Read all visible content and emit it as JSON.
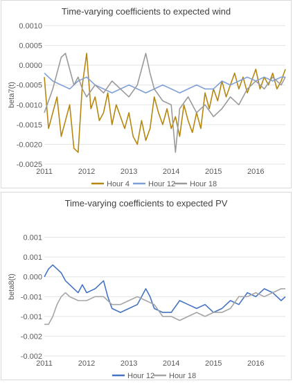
{
  "chart_data": [
    {
      "type": "line",
      "title": "Time-varying coefficients to expected wind",
      "xlabel": "",
      "ylabel": "beta7(t)",
      "ylim": [
        -0.0025,
        0.001
      ],
      "yticks": [
        "0.0010",
        "0.0005",
        "0.0000",
        "-0.0005",
        "-0.0010",
        "-0.0015",
        "-0.0020",
        "-0.0025"
      ],
      "ytick_values": [
        0.001,
        0.0005,
        0.0,
        -0.0005,
        -0.001,
        -0.0015,
        -0.002,
        -0.0025
      ],
      "xlim": [
        2011.0,
        2016.7
      ],
      "xticks": [
        "2011",
        "2012",
        "2013",
        "2014",
        "2015",
        "2016"
      ],
      "grid": true,
      "legend": "bottom",
      "series": [
        {
          "name": "Hour 4",
          "color": "#b5870f",
          "x": [
            2011.0,
            2011.1,
            2011.2,
            2011.3,
            2011.4,
            2011.5,
            2011.6,
            2011.7,
            2011.8,
            2011.9,
            2012.0,
            2012.1,
            2012.2,
            2012.3,
            2012.4,
            2012.5,
            2012.6,
            2012.7,
            2012.8,
            2012.9,
            2013.0,
            2013.1,
            2013.2,
            2013.3,
            2013.4,
            2013.5,
            2013.6,
            2013.7,
            2013.8,
            2013.9,
            2014.0,
            2014.1,
            2014.2,
            2014.3,
            2014.4,
            2014.5,
            2014.6,
            2014.7,
            2014.8,
            2014.9,
            2015.0,
            2015.1,
            2015.2,
            2015.3,
            2015.4,
            2015.5,
            2015.6,
            2015.7,
            2015.8,
            2015.9,
            2016.0,
            2016.1,
            2016.2,
            2016.3,
            2016.4,
            2016.5,
            2016.6,
            2016.7
          ],
          "values": [
            -0.0003,
            -0.0016,
            -0.0012,
            -0.0008,
            -0.0018,
            -0.0014,
            -0.001,
            -0.0021,
            -0.0022,
            -0.0005,
            0.0003,
            -0.0011,
            -0.0008,
            -0.0014,
            -0.0012,
            -0.0007,
            -0.0015,
            -0.001,
            -0.0013,
            -0.0016,
            -0.0012,
            -0.0018,
            -0.002,
            -0.0014,
            -0.0019,
            -0.0016,
            -0.0008,
            -0.0012,
            -0.0015,
            -0.0011,
            -0.0016,
            -0.0013,
            -0.0018,
            -0.001,
            -0.0014,
            -0.0017,
            -0.0012,
            -0.0016,
            -0.0007,
            -0.0011,
            -0.0006,
            -0.0009,
            -0.0004,
            -0.0008,
            -0.0005,
            -0.0002,
            -0.0006,
            -0.0003,
            -0.0007,
            -0.0004,
            -0.0001,
            -0.0006,
            -0.0003,
            -0.0005,
            -0.0002,
            -0.0006,
            -0.0004,
            -0.0001
          ]
        },
        {
          "name": "Hour 12",
          "color": "#7f9fd8",
          "x": [
            2011.0,
            2011.2,
            2011.4,
            2011.6,
            2011.8,
            2012.0,
            2012.2,
            2012.4,
            2012.6,
            2012.8,
            2013.0,
            2013.2,
            2013.4,
            2013.6,
            2013.8,
            2014.0,
            2014.2,
            2014.4,
            2014.6,
            2014.8,
            2015.0,
            2015.2,
            2015.4,
            2015.6,
            2015.8,
            2016.0,
            2016.2,
            2016.4,
            2016.6,
            2016.7
          ],
          "values": [
            -0.0002,
            -0.0004,
            -0.0005,
            -0.0006,
            -0.0004,
            -0.0003,
            -0.0005,
            -0.0006,
            -0.0007,
            -0.0006,
            -0.0005,
            -0.0006,
            -0.0007,
            -0.0006,
            -0.0005,
            -0.0006,
            -0.0007,
            -0.0006,
            -0.0005,
            -0.0006,
            -0.0006,
            -0.0004,
            -0.0005,
            -0.0004,
            -0.0003,
            -0.0004,
            -0.0003,
            -0.0004,
            -0.0003,
            -0.0003
          ]
        },
        {
          "name": "Hour 18",
          "color": "#9a9a9a",
          "x": [
            2011.0,
            2011.1,
            2011.2,
            2011.3,
            2011.4,
            2011.5,
            2011.6,
            2011.7,
            2011.8,
            2011.9,
            2012.0,
            2012.2,
            2012.4,
            2012.6,
            2012.8,
            2013.0,
            2013.2,
            2013.4,
            2013.5,
            2013.6,
            2013.8,
            2014.0,
            2014.1,
            2014.2,
            2014.4,
            2014.6,
            2014.8,
            2015.0,
            2015.2,
            2015.4,
            2015.6,
            2015.8,
            2016.0,
            2016.2,
            2016.4,
            2016.6,
            2016.7
          ],
          "values": [
            -0.0012,
            -0.0009,
            -0.0006,
            -0.0002,
            0.0002,
            0.0003,
            -0.0001,
            -0.0005,
            -0.0003,
            -0.0006,
            -0.0008,
            -0.0005,
            -0.0007,
            -0.0004,
            -0.0006,
            -0.0008,
            -0.0005,
            0.0003,
            -0.0002,
            -0.0006,
            -0.0009,
            -0.001,
            -0.0022,
            -0.0011,
            -0.0008,
            -0.0012,
            -0.001,
            -0.0013,
            -0.0011,
            -0.0008,
            -0.001,
            -0.0006,
            -0.0004,
            -0.0006,
            -0.0003,
            -0.0005,
            -0.0003
          ]
        }
      ]
    },
    {
      "type": "line",
      "title": "Time-varying coefficients to expected PV",
      "xlabel": "",
      "ylabel": "beta8(t)",
      "ylim": [
        -0.002,
        0.0015
      ],
      "yticks": [
        "0.001",
        "0.001",
        "0.000",
        "-0.001",
        "-0.001",
        "-0.002",
        "-0.002"
      ],
      "ytick_values": [
        0.001,
        0.0005,
        0.0,
        -0.0005,
        -0.001,
        -0.0015,
        -0.002
      ],
      "xlim": [
        2011.0,
        2016.7
      ],
      "xticks": [
        "2011",
        "2012",
        "2013",
        "2014",
        "2015",
        "2016"
      ],
      "grid": true,
      "legend": "bottom",
      "series": [
        {
          "name": "Hour 12",
          "color": "#4472c4",
          "x": [
            2011.0,
            2011.1,
            2011.2,
            2011.3,
            2011.4,
            2011.5,
            2011.6,
            2011.7,
            2011.8,
            2011.9,
            2012.0,
            2012.2,
            2012.4,
            2012.5,
            2012.6,
            2012.8,
            2013.0,
            2013.2,
            2013.4,
            2013.5,
            2013.6,
            2013.8,
            2014.0,
            2014.2,
            2014.4,
            2014.6,
            2014.8,
            2015.0,
            2015.2,
            2015.4,
            2015.6,
            2015.8,
            2016.0,
            2016.2,
            2016.4,
            2016.6,
            2016.7
          ],
          "values": [
            0.0,
            0.0002,
            0.0003,
            0.0002,
            0.0001,
            -0.0001,
            -0.0002,
            -0.0003,
            -0.0004,
            -0.0002,
            -0.0004,
            -0.0003,
            -0.0001,
            -0.0005,
            -0.0008,
            -0.0009,
            -0.0008,
            -0.0007,
            -0.0003,
            -0.0005,
            -0.0008,
            -0.0009,
            -0.0009,
            -0.0006,
            -0.0007,
            -0.0008,
            -0.0007,
            -0.0009,
            -0.0008,
            -0.0006,
            -0.0007,
            -0.0004,
            -0.0005,
            -0.0003,
            -0.0004,
            -0.0006,
            -0.0005
          ]
        },
        {
          "name": "Hour 18",
          "color": "#a5a5a5",
          "x": [
            2011.0,
            2011.1,
            2011.2,
            2011.3,
            2011.4,
            2011.5,
            2011.6,
            2011.8,
            2012.0,
            2012.2,
            2012.4,
            2012.6,
            2012.8,
            2013.0,
            2013.2,
            2013.4,
            2013.6,
            2013.8,
            2014.0,
            2014.2,
            2014.4,
            2014.6,
            2014.8,
            2015.0,
            2015.2,
            2015.4,
            2015.6,
            2015.8,
            2016.0,
            2016.2,
            2016.4,
            2016.6,
            2016.7
          ],
          "values": [
            -0.0012,
            -0.0012,
            -0.001,
            -0.0007,
            -0.0005,
            -0.0004,
            -0.0005,
            -0.0006,
            -0.0006,
            -0.0005,
            -0.0005,
            -0.0007,
            -0.0007,
            -0.0006,
            -0.0005,
            -0.0006,
            -0.0007,
            -0.001,
            -0.001,
            -0.0011,
            -0.001,
            -0.0009,
            -0.001,
            -0.0009,
            -0.0009,
            -0.0008,
            -0.0005,
            -0.0005,
            -0.0004,
            -0.0005,
            -0.0004,
            -0.0003,
            -0.0003
          ]
        }
      ]
    }
  ]
}
